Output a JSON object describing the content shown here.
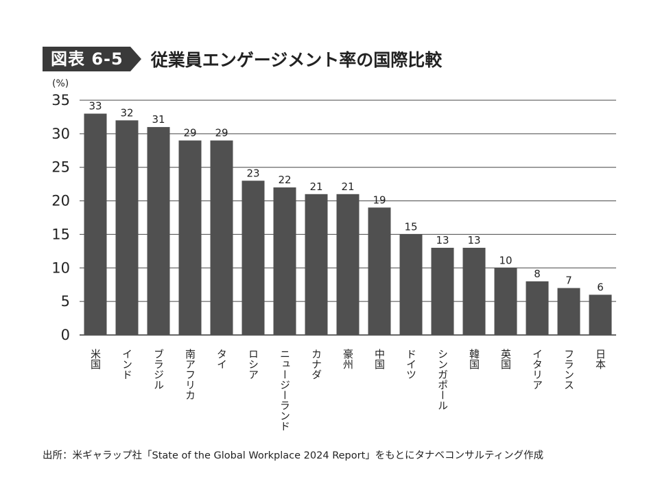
{
  "figure": {
    "badge": "図表 6-5",
    "title": "従業員エンゲージメント率の国際比較"
  },
  "chart_data": {
    "type": "bar",
    "unit_label": "(%)",
    "categories": [
      "米国",
      "インド",
      "ブラジル",
      "南アフリカ",
      "タイ",
      "ロシア",
      "ニュージーランド",
      "カナダ",
      "豪州",
      "中国",
      "ドイツ",
      "シンガポール",
      "韓国",
      "英国",
      "イタリア",
      "フランス",
      "日本"
    ],
    "values": [
      33,
      32,
      31,
      29,
      29,
      23,
      22,
      21,
      21,
      19,
      15,
      13,
      13,
      10,
      8,
      7,
      6
    ],
    "ylim": [
      0,
      35
    ],
    "yticks": [
      0,
      5,
      10,
      15,
      20,
      25,
      30,
      35
    ],
    "grid": true,
    "bar_color": "#505050"
  },
  "source": "出所：米ギャラップ社「State of the Global Workplace 2024 Report」をもとにタナベコンサルティング作成"
}
